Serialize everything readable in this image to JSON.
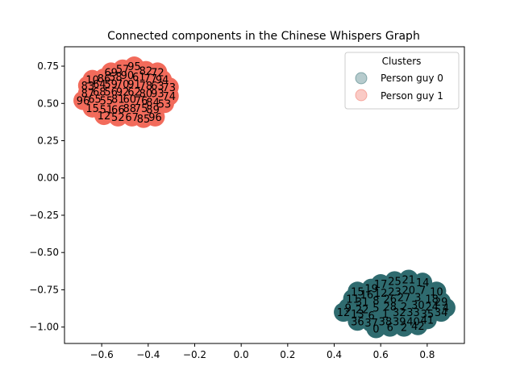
{
  "chart_data": {
    "type": "scatter",
    "title": "Connected components in the Chinese Whispers Graph",
    "xlabel": "",
    "ylabel": "",
    "xlim": [
      -0.76,
      0.96
    ],
    "ylim": [
      -1.11,
      0.88
    ],
    "xticks": [
      -0.6,
      -0.4,
      -0.2,
      0.0,
      0.2,
      0.4,
      0.6,
      0.8
    ],
    "xtick_labels": [
      "−0.6",
      "−0.4",
      "−0.2",
      "0.0",
      "0.2",
      "0.4",
      "0.6",
      "0.8"
    ],
    "yticks": [
      0.75,
      0.5,
      0.25,
      0.0,
      -0.25,
      -0.5,
      -0.75,
      -1.0
    ],
    "ytick_labels": [
      "0.75",
      "0.50",
      "0.25",
      "0.00",
      "−0.25",
      "−0.50",
      "−0.75",
      "−1.00"
    ],
    "grid": false,
    "legend": {
      "title": "Clusters",
      "placement": "upper right"
    },
    "series": [
      {
        "name": "Person guy 0",
        "color": "#2f6b6f",
        "points": [
          [
            0.56,
            -0.74,
            "19"
          ],
          [
            0.6,
            -0.71,
            "17"
          ],
          [
            0.66,
            -0.69,
            "25"
          ],
          [
            0.72,
            -0.68,
            "21"
          ],
          [
            0.78,
            -0.7,
            "14"
          ],
          [
            0.5,
            -0.76,
            "15"
          ],
          [
            0.54,
            -0.78,
            "16"
          ],
          [
            0.6,
            -0.77,
            "12"
          ],
          [
            0.66,
            -0.76,
            "23"
          ],
          [
            0.72,
            -0.75,
            "20"
          ],
          [
            0.78,
            -0.75,
            "7"
          ],
          [
            0.84,
            -0.76,
            "10"
          ],
          [
            0.48,
            -0.81,
            "11"
          ],
          [
            0.52,
            -0.83,
            "31"
          ],
          [
            0.58,
            -0.82,
            "8"
          ],
          [
            0.64,
            -0.81,
            "26"
          ],
          [
            0.7,
            -0.8,
            "27"
          ],
          [
            0.76,
            -0.8,
            "3"
          ],
          [
            0.82,
            -0.81,
            "18"
          ],
          [
            0.86,
            -0.83,
            "29"
          ],
          [
            0.46,
            -0.87,
            "9"
          ],
          [
            0.52,
            -0.88,
            "22"
          ],
          [
            0.58,
            -0.87,
            "5"
          ],
          [
            0.64,
            -0.86,
            "28"
          ],
          [
            0.7,
            -0.86,
            "2"
          ],
          [
            0.76,
            -0.85,
            "30"
          ],
          [
            0.82,
            -0.86,
            "24"
          ],
          [
            0.88,
            -0.87,
            "4"
          ],
          [
            0.44,
            -0.9,
            "12"
          ],
          [
            0.5,
            -0.91,
            "13"
          ],
          [
            0.56,
            -0.92,
            "6"
          ],
          [
            0.62,
            -0.91,
            "1"
          ],
          [
            0.68,
            -0.9,
            "32"
          ],
          [
            0.74,
            -0.9,
            "33"
          ],
          [
            0.8,
            -0.91,
            "35"
          ],
          [
            0.86,
            -0.9,
            "34"
          ],
          [
            0.5,
            -0.96,
            "36"
          ],
          [
            0.56,
            -0.97,
            "37"
          ],
          [
            0.62,
            -0.96,
            "38"
          ],
          [
            0.68,
            -0.96,
            "39"
          ],
          [
            0.74,
            -0.96,
            "40"
          ],
          [
            0.8,
            -0.95,
            "41"
          ],
          [
            0.58,
            -1.01,
            "0"
          ],
          [
            0.64,
            -1.0,
            "6"
          ],
          [
            0.7,
            -1.0,
            "2"
          ],
          [
            0.76,
            -0.99,
            "42"
          ]
        ]
      },
      {
        "name": "Person guy 1",
        "color": "#f26b5b",
        "points": [
          [
            -0.56,
            0.71,
            "69"
          ],
          [
            -0.51,
            0.73,
            "57"
          ],
          [
            -0.46,
            0.75,
            "95"
          ],
          [
            -0.41,
            0.72,
            "82"
          ],
          [
            -0.36,
            0.71,
            "72"
          ],
          [
            -0.64,
            0.66,
            "10"
          ],
          [
            -0.59,
            0.67,
            "86"
          ],
          [
            -0.54,
            0.68,
            "58"
          ],
          [
            -0.49,
            0.69,
            "90"
          ],
          [
            -0.44,
            0.68,
            "61"
          ],
          [
            -0.39,
            0.67,
            "77"
          ],
          [
            -0.34,
            0.66,
            "94"
          ],
          [
            -0.66,
            0.62,
            "83"
          ],
          [
            -0.61,
            0.63,
            "64"
          ],
          [
            -0.56,
            0.63,
            "59"
          ],
          [
            -0.51,
            0.63,
            "70"
          ],
          [
            -0.46,
            0.63,
            "91"
          ],
          [
            -0.41,
            0.62,
            "78"
          ],
          [
            -0.36,
            0.62,
            "63"
          ],
          [
            -0.31,
            0.61,
            "73"
          ],
          [
            -0.66,
            0.57,
            "87"
          ],
          [
            -0.61,
            0.58,
            "68"
          ],
          [
            -0.56,
            0.58,
            "56"
          ],
          [
            -0.51,
            0.58,
            "92"
          ],
          [
            -0.46,
            0.58,
            "62"
          ],
          [
            -0.41,
            0.57,
            "80"
          ],
          [
            -0.36,
            0.57,
            "93"
          ],
          [
            -0.31,
            0.55,
            "74"
          ],
          [
            -0.68,
            0.52,
            "96"
          ],
          [
            -0.63,
            0.53,
            "65"
          ],
          [
            -0.58,
            0.52,
            "55"
          ],
          [
            -0.53,
            0.53,
            "81"
          ],
          [
            -0.48,
            0.53,
            "60"
          ],
          [
            -0.43,
            0.52,
            "76"
          ],
          [
            -0.38,
            0.51,
            "84"
          ],
          [
            -0.33,
            0.5,
            "53"
          ],
          [
            -0.64,
            0.47,
            "15"
          ],
          [
            -0.58,
            0.46,
            "51"
          ],
          [
            -0.53,
            0.46,
            "66"
          ],
          [
            -0.48,
            0.47,
            "88"
          ],
          [
            -0.43,
            0.47,
            "75"
          ],
          [
            -0.38,
            0.46,
            "89"
          ],
          [
            -0.59,
            0.42,
            "12"
          ],
          [
            -0.53,
            0.41,
            "52"
          ],
          [
            -0.47,
            0.41,
            "67"
          ],
          [
            -0.42,
            0.4,
            "85"
          ],
          [
            -0.37,
            0.41,
            "96"
          ]
        ]
      }
    ]
  }
}
